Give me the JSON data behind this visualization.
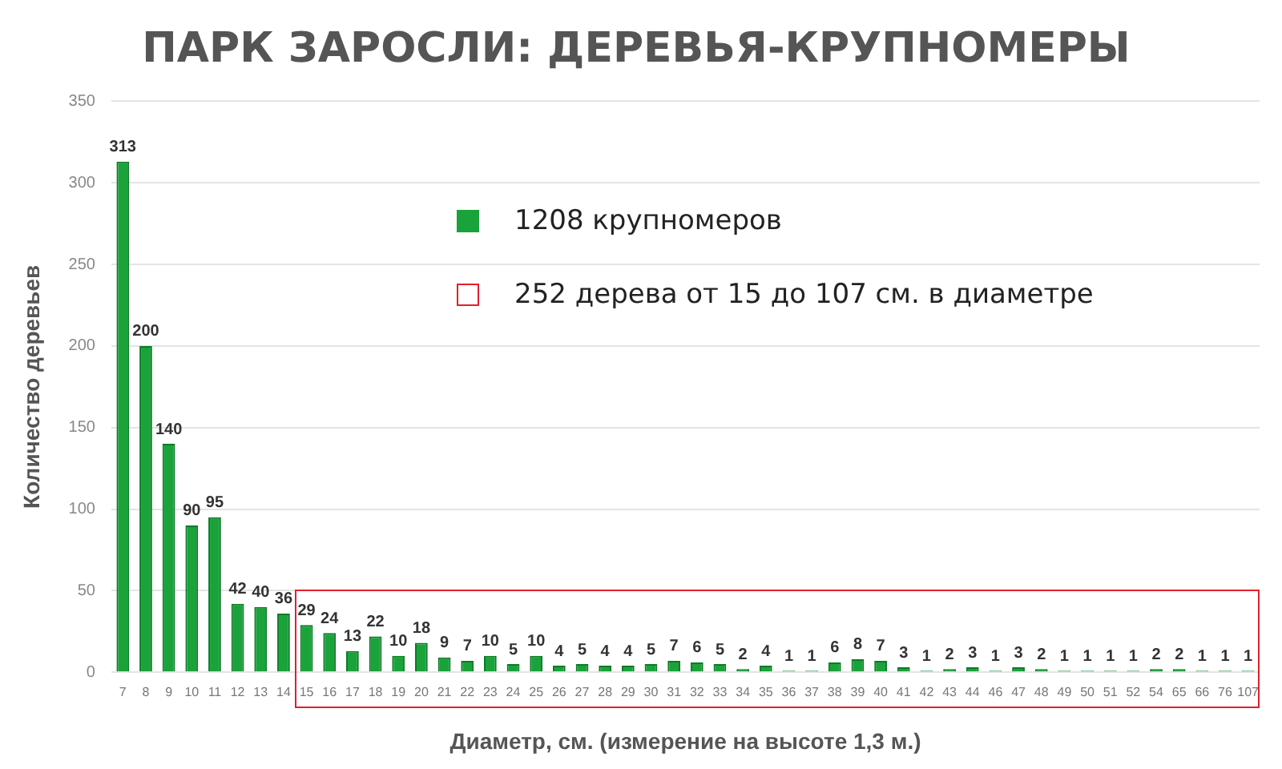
{
  "chart_data": {
    "type": "bar",
    "title": "ПАРК ЗАРОСЛИ: ДЕРЕВЬЯ-КРУПНОМЕРЫ",
    "xlabel": "Диаметр, см. (измерение на высоте 1,3 м.)",
    "ylabel": "Количество деревьев",
    "categories": [
      "7",
      "8",
      "9",
      "10",
      "11",
      "12",
      "13",
      "14",
      "15",
      "16",
      "17",
      "18",
      "19",
      "20",
      "21",
      "22",
      "23",
      "24",
      "25",
      "26",
      "27",
      "28",
      "29",
      "30",
      "31",
      "32",
      "33",
      "34",
      "35",
      "36",
      "37",
      "38",
      "39",
      "40",
      "41",
      "42",
      "43",
      "44",
      "46",
      "47",
      "48",
      "49",
      "50",
      "51",
      "52",
      "54",
      "65",
      "66",
      "76",
      "107"
    ],
    "series": [
      {
        "name": "1208 крупномеров",
        "color": "#1aa33a",
        "values": [
          313,
          200,
          140,
          90,
          95,
          42,
          40,
          36,
          29,
          24,
          13,
          22,
          10,
          18,
          9,
          7,
          10,
          5,
          10,
          4,
          5,
          4,
          4,
          5,
          7,
          6,
          5,
          2,
          4,
          1,
          1,
          6,
          8,
          7,
          3,
          1,
          2,
          3,
          1,
          3,
          2,
          1,
          1,
          1,
          1,
          2,
          2,
          1,
          1,
          1
        ]
      }
    ],
    "annotations": [
      "252 дерева от 15 до 107 см. в диаметре"
    ],
    "ylim": [
      0,
      350
    ],
    "yticks": [
      0,
      50,
      100,
      150,
      200,
      250,
      300,
      350
    ],
    "grid": "y",
    "legend": "top",
    "data_labels": true
  }
}
